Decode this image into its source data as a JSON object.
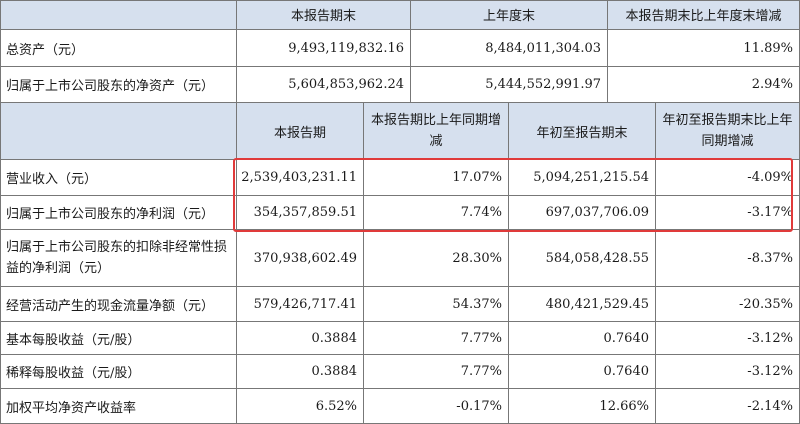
{
  "top_table": {
    "headers": [
      "本报告期末",
      "上年度末",
      "本报告期末比上年度末增减"
    ],
    "rows": [
      {
        "label": "总资产（元）",
        "values": [
          "9,493,119,832.16",
          "8,484,011,304.03",
          "11.89%"
        ]
      },
      {
        "label": "归属于上市公司股东的净资产（元）",
        "values": [
          "5,604,853,962.24",
          "5,444,552,991.97",
          "2.94%"
        ]
      }
    ]
  },
  "bottom_table": {
    "headers": [
      "本报告期",
      "本报告期比上年同期增减",
      "年初至报告期末",
      "年初至报告期末比上年同期增减"
    ],
    "rows": [
      {
        "label": "营业收入（元）",
        "values": [
          "2,539,403,231.11",
          "17.07%",
          "5,094,251,215.54",
          "-4.09%"
        ]
      },
      {
        "label": "归属于上市公司股东的净利润（元）",
        "values": [
          "354,357,859.51",
          "7.74%",
          "697,037,706.09",
          "-3.17%"
        ]
      },
      {
        "label": "归属于上市公司股东的扣除非经常性损益的净利润（元）",
        "values": [
          "370,938,602.49",
          "28.30%",
          "584,058,428.55",
          "-8.37%"
        ]
      },
      {
        "label": "经营活动产生的现金流量净额（元）",
        "values": [
          "579,426,717.41",
          "54.37%",
          "480,421,529.45",
          "-20.35%"
        ]
      },
      {
        "label": "基本每股收益（元/股）",
        "values": [
          "0.3884",
          "7.77%",
          "0.7640",
          "-3.12%"
        ]
      },
      {
        "label": "稀释每股收益（元/股）",
        "values": [
          "0.3884",
          "7.77%",
          "0.7640",
          "-3.12%"
        ]
      },
      {
        "label": "加权平均净资产收益率",
        "values": [
          "6.52%",
          "-0.17%",
          "12.66%",
          "-2.14%"
        ]
      }
    ]
  },
  "colors": {
    "header_bg": "#d6e0ee",
    "grid_line": "#777777",
    "highlight": "#e03a3a"
  }
}
